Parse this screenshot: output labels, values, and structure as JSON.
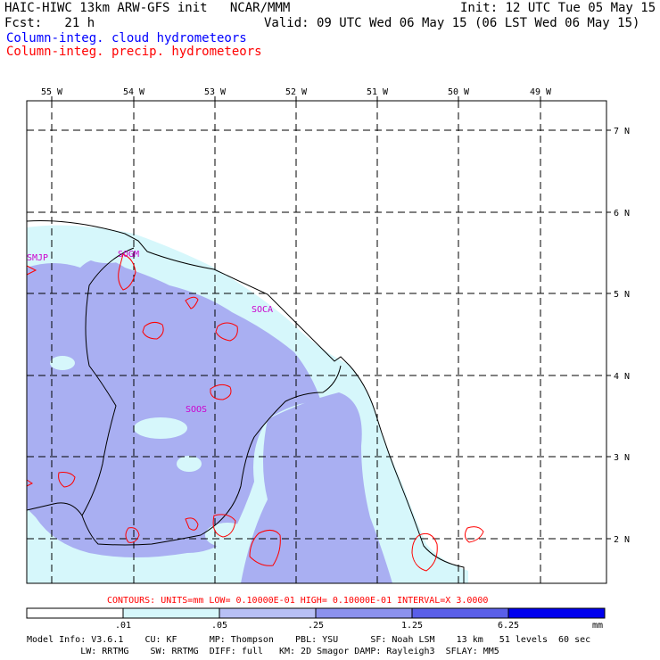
{
  "header": {
    "title_left": "HAIC-HIWC 13km ARW-GFS init   NCAR/MMM",
    "init": "Init: 12 UTC Tue 05 May 15",
    "fcst": "Fcst:   21 h",
    "valid": "Valid: 09 UTC Wed 06 May 15 (06 LST Wed 06 May 15)",
    "field1": "Column-integ. cloud hydrometeors",
    "field2": "Column-integ. precip. hydrometeors",
    "field1_color": "#0000ff",
    "field2_color": "#ff0000"
  },
  "map": {
    "lon_labels": [
      "55 W",
      "54 W",
      "53 W",
      "52 W",
      "51 W",
      "50 W",
      "49 W"
    ],
    "lat_labels": [
      "7 N",
      "6 N",
      "5 N",
      "4 N",
      "3 N",
      "2 N"
    ],
    "stations": [
      "SMJP",
      "SOCA",
      "SOOS",
      "SOGM"
    ],
    "station_color": "#cc00cc",
    "contour_color": "#ff0000",
    "fill_colors": {
      "light": "#d6f7fb",
      "medium": "#a9aff2"
    }
  },
  "contours_note": "CONTOURS:  UNITS=mm  LOW= 0.10000E-01  HIGH= 0.10000E-01  INTERVAL=X  3.0000",
  "colorbar": {
    "levels": [
      ".01",
      ".05",
      ".25",
      "1.25",
      "6.25"
    ],
    "unit": "mm",
    "colors": [
      "#ffffff",
      "#d6f7fb",
      "#b8c0f5",
      "#8c92ee",
      "#5a5fe8",
      "#0000ee"
    ]
  },
  "footer": {
    "line1": "Model Info: V3.6.1    CU: KF      MP: Thompson    PBL: YSU      SF: Noah LSM    13 km   51 levels  60 sec",
    "line2": "          LW: RRTMG    SW: RRTMG  DIFF: full   KM: 2D Smagor DAMP: Rayleigh3  SFLAY: MM5"
  }
}
